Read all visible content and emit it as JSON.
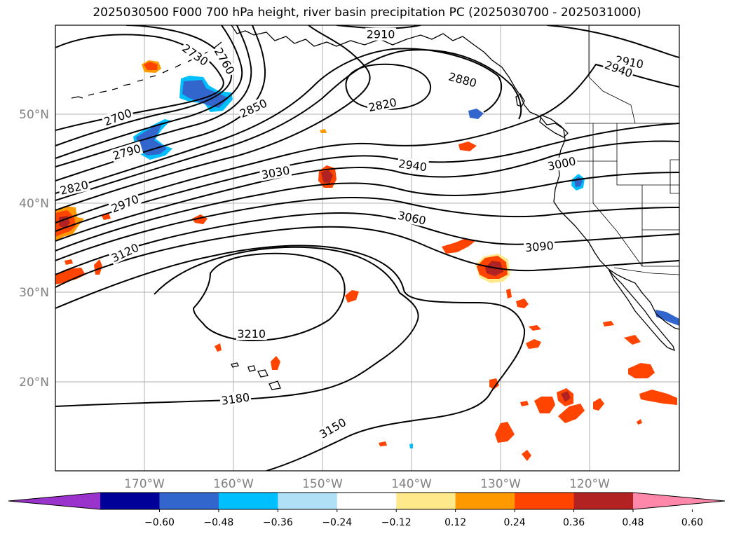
{
  "title": "2025030500 F000 700 hPa height, river basin precipitation PC (2025030700 - 2025031000)",
  "map": {
    "lon_range": [
      -180,
      -110
    ],
    "lat_range": [
      10,
      60
    ],
    "lat_labels": [
      {
        "lat": 50,
        "text": "50°N"
      },
      {
        "lat": 40,
        "text": "40°N"
      },
      {
        "lat": 30,
        "text": "30°N"
      },
      {
        "lat": 20,
        "text": "20°N"
      }
    ],
    "lon_labels": [
      {
        "lon": -170,
        "text": "170°W"
      },
      {
        "lon": -160,
        "text": "160°W"
      },
      {
        "lon": -150,
        "text": "150°W"
      },
      {
        "lon": -140,
        "text": "140°W"
      },
      {
        "lon": -130,
        "text": "130°W"
      },
      {
        "lon": -120,
        "text": "120°W"
      }
    ],
    "contour_labels": [
      {
        "text": "2910",
        "lon": -143.5,
        "lat": 59.0,
        "rot": 0
      },
      {
        "text": "2910",
        "lon": -115.6,
        "lat": 55.9,
        "rot": 10
      },
      {
        "text": "2940",
        "lon": -116.8,
        "lat": 55.1,
        "rot": 20
      },
      {
        "text": "2730",
        "lon": -164.3,
        "lat": 56.7,
        "rot": 35
      },
      {
        "text": "2760",
        "lon": -161.0,
        "lat": 56.0,
        "rot": 60
      },
      {
        "text": "2880",
        "lon": -134.3,
        "lat": 53.9,
        "rot": 15
      },
      {
        "text": "2820",
        "lon": -143.3,
        "lat": 51.1,
        "rot": -12
      },
      {
        "text": "2850",
        "lon": -157.8,
        "lat": 50.7,
        "rot": -25
      },
      {
        "text": "2700",
        "lon": -173.0,
        "lat": 49.7,
        "rot": -20
      },
      {
        "text": "2790",
        "lon": -172.0,
        "lat": 45.8,
        "rot": -17
      },
      {
        "text": "2940",
        "lon": -139.9,
        "lat": 44.3,
        "rot": 8
      },
      {
        "text": "3000",
        "lon": -123.2,
        "lat": 44.5,
        "rot": -12
      },
      {
        "text": "3030",
        "lon": -155.3,
        "lat": 43.5,
        "rot": -10
      },
      {
        "text": "2820",
        "lon": -177.9,
        "lat": 41.8,
        "rot": -13
      },
      {
        "text": "2970",
        "lon": -172.2,
        "lat": 40.0,
        "rot": -22
      },
      {
        "text": "3060",
        "lon": -140.0,
        "lat": 38.4,
        "rot": 12
      },
      {
        "text": "3090",
        "lon": -125.7,
        "lat": 35.2,
        "rot": -5
      },
      {
        "text": "3120",
        "lon": -172.2,
        "lat": 34.5,
        "rot": -25
      },
      {
        "text": "3210",
        "lon": -158.0,
        "lat": 25.4,
        "rot": 0
      },
      {
        "text": "3180",
        "lon": -159.8,
        "lat": 18.1,
        "rot": -8
      },
      {
        "text": "3150",
        "lon": -148.9,
        "lat": 14.8,
        "rot": -30
      }
    ]
  },
  "colorbar": {
    "colors": [
      "#9933CC",
      "#000099",
      "#3366CC",
      "#00BFFF",
      "#B0E0F6",
      "#FFFFFF",
      "#FFE98A",
      "#FF9900",
      "#FF4400",
      "#B22222",
      "#FF88AA"
    ],
    "tick_labels": [
      "−0.60",
      "−0.48",
      "−0.36",
      "−0.24",
      "−0.12",
      "0.12",
      "0.24",
      "0.36",
      "0.48",
      "0.60"
    ]
  }
}
